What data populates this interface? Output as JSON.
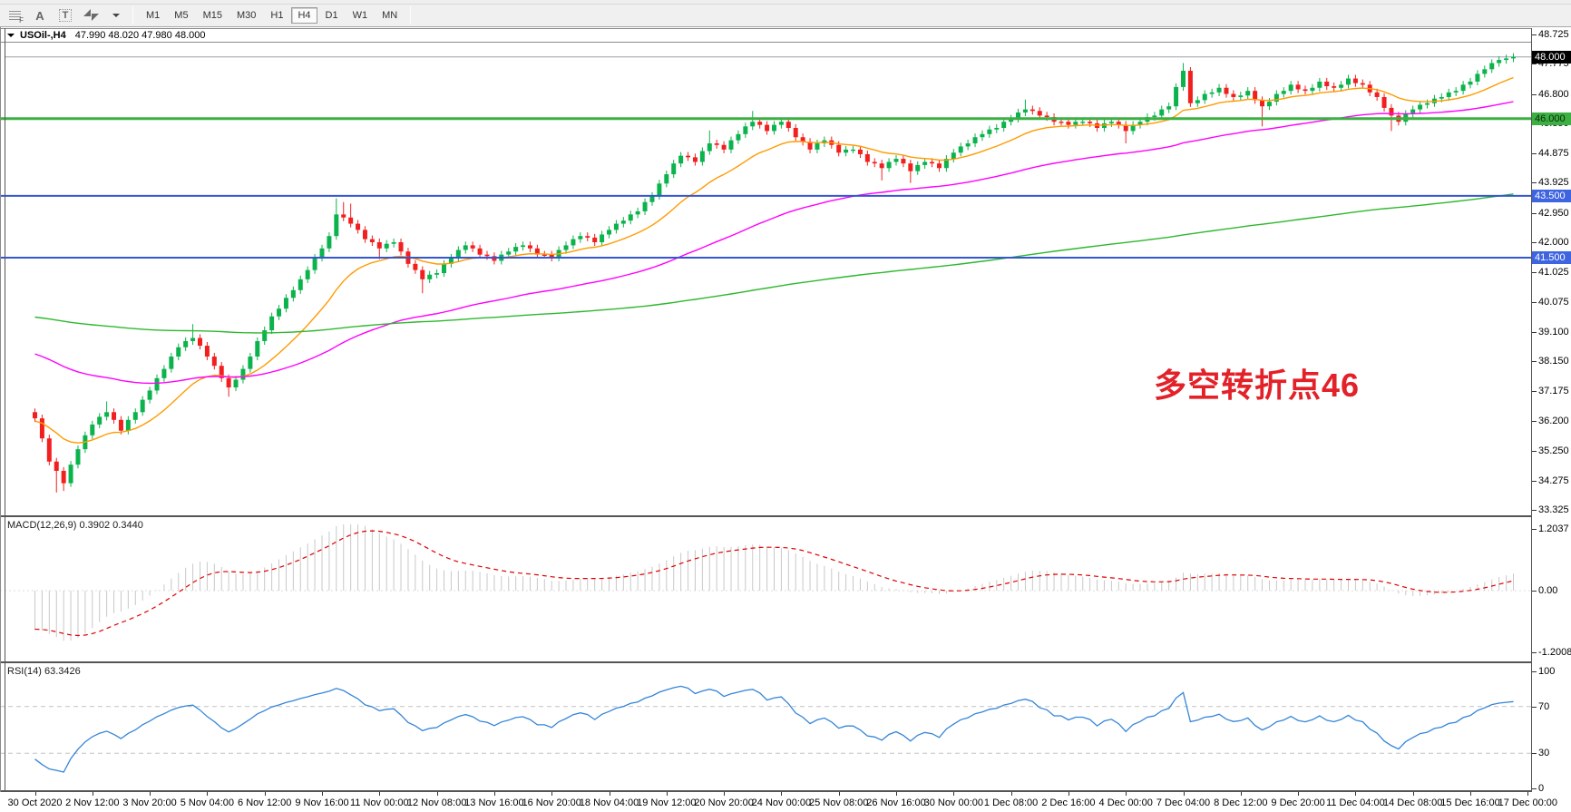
{
  "toolbar": {
    "icons": {
      "fibonacci": "F",
      "text": "A",
      "label": "T"
    },
    "timeframes": [
      "M1",
      "M5",
      "M15",
      "M30",
      "H1",
      "H4",
      "D1",
      "W1",
      "MN"
    ],
    "active_timeframe": "H4"
  },
  "chart": {
    "title": {
      "symbol": "USOil-,H4",
      "ohlc": "47.990 48.020 47.980 48.000"
    },
    "annotation": {
      "text": "多空转折点46",
      "color": "#e32129"
    }
  },
  "chart_data": {
    "type": "candlestick",
    "symbol": "USOil",
    "timeframe": "H4",
    "title": "USOil-,H4 47.990 48.020 47.980 48.000",
    "ohlc_display": {
      "open": "47.990",
      "high": "48.020",
      "low": "47.980",
      "close": "48.000"
    },
    "colors": {
      "bull": "#0bb34c",
      "bear": "#f21f1f",
      "price_line": "#9aa0aa",
      "price_box_bg": "#000000",
      "price_box_fg": "#ffffff",
      "macd_histogram": "#c8c8c8",
      "macd_signal": "#e00000",
      "rsi_line": "#3585d8",
      "rsi_levels": "#c4c4c4"
    },
    "price_axis": {
      "ticks": [
        48.725,
        47.775,
        46.8,
        45.85,
        44.875,
        43.925,
        42.95,
        42.0,
        41.025,
        40.075,
        39.1,
        38.15,
        37.175,
        36.2,
        35.25,
        34.275,
        33.325
      ],
      "current_price": {
        "value": 48.0,
        "label": "48.000"
      },
      "levels": [
        {
          "value": 46.0,
          "label": "46.000",
          "color": "#3cb043",
          "box_bg": "#3cb043",
          "box_fg": "#0a2a0a",
          "width": 3
        },
        {
          "value": 43.5,
          "label": "43.500",
          "color": "#3456d1",
          "box_bg": "#3e64e0",
          "box_fg": "#ffffff",
          "width": 2
        },
        {
          "value": 41.5,
          "label": "41.500",
          "color": "#3456d1",
          "box_bg": "#3e64e0",
          "box_fg": "#ffffff",
          "width": 2
        }
      ]
    },
    "time_axis": {
      "bars_per_label": 8,
      "labels": [
        "30 Oct 2020",
        "2 Nov 12:00",
        "3 Nov 20:00",
        "5 Nov 04:00",
        "6 Nov 12:00",
        "9 Nov 16:00",
        "11 Nov 00:00",
        "12 Nov 08:00",
        "13 Nov 16:00",
        "16 Nov 20:00",
        "18 Nov 04:00",
        "19 Nov 12:00",
        "20 Nov 20:00",
        "24 Nov 00:00",
        "25 Nov 08:00",
        "26 Nov 16:00",
        "30 Nov 00:00",
        "1 Dec 08:00",
        "2 Dec 16:00",
        "4 Dec 00:00",
        "7 Dec 04:00",
        "8 Dec 12:00",
        "9 Dec 20:00",
        "11 Dec 04:00",
        "14 Dec 08:00",
        "15 Dec 16:00",
        "17 Dec 00:00"
      ]
    },
    "candles": {
      "count": 207,
      "first_open": 36.5,
      "default_wick": 0.12,
      "jitter": 0.05,
      "keyframes": [
        [
          0,
          36.3
        ],
        [
          2,
          34.9
        ],
        [
          4,
          34.2
        ],
        [
          6,
          35.3
        ],
        [
          8,
          36.1
        ],
        [
          10,
          36.5
        ],
        [
          12,
          35.9
        ],
        [
          14,
          36.5
        ],
        [
          16,
          37.2
        ],
        [
          18,
          37.9
        ],
        [
          20,
          38.6
        ],
        [
          22,
          38.9
        ],
        [
          24,
          38.3
        ],
        [
          26,
          37.6
        ],
        [
          27,
          37.3
        ],
        [
          29,
          37.9
        ],
        [
          31,
          38.8
        ],
        [
          33,
          39.6
        ],
        [
          35,
          40.2
        ],
        [
          37,
          40.8
        ],
        [
          39,
          41.5
        ],
        [
          41,
          42.2
        ],
        [
          42,
          42.9
        ],
        [
          44,
          42.6
        ],
        [
          46,
          42.1
        ],
        [
          48,
          41.8
        ],
        [
          50,
          42.0
        ],
        [
          52,
          41.3
        ],
        [
          54,
          40.8
        ],
        [
          56,
          41.0
        ],
        [
          58,
          41.5
        ],
        [
          60,
          41.9
        ],
        [
          62,
          41.6
        ],
        [
          64,
          41.4
        ],
        [
          66,
          41.7
        ],
        [
          68,
          41.9
        ],
        [
          70,
          41.6
        ],
        [
          72,
          41.5
        ],
        [
          74,
          41.9
        ],
        [
          76,
          42.2
        ],
        [
          78,
          42.0
        ],
        [
          80,
          42.4
        ],
        [
          82,
          42.7
        ],
        [
          84,
          43.0
        ],
        [
          86,
          43.5
        ],
        [
          88,
          44.2
        ],
        [
          90,
          44.8
        ],
        [
          92,
          44.6
        ],
        [
          94,
          45.2
        ],
        [
          96,
          45.0
        ],
        [
          98,
          45.5
        ],
        [
          100,
          45.9
        ],
        [
          102,
          45.6
        ],
        [
          104,
          45.9
        ],
        [
          106,
          45.4
        ],
        [
          108,
          45.0
        ],
        [
          110,
          45.3
        ],
        [
          112,
          44.9
        ],
        [
          114,
          45.0
        ],
        [
          116,
          44.6
        ],
        [
          118,
          44.4
        ],
        [
          120,
          44.7
        ],
        [
          122,
          44.3
        ],
        [
          124,
          44.6
        ],
        [
          126,
          44.4
        ],
        [
          128,
          44.9
        ],
        [
          130,
          45.2
        ],
        [
          132,
          45.5
        ],
        [
          134,
          45.7
        ],
        [
          136,
          46.0
        ],
        [
          138,
          46.3
        ],
        [
          140,
          46.1
        ],
        [
          142,
          45.9
        ],
        [
          144,
          45.8
        ],
        [
          146,
          45.9
        ],
        [
          148,
          45.7
        ],
        [
          150,
          45.9
        ],
        [
          152,
          45.6
        ],
        [
          154,
          45.9
        ],
        [
          156,
          46.1
        ],
        [
          158,
          46.4
        ],
        [
          160,
          47.55
        ],
        [
          161,
          46.5
        ],
        [
          163,
          46.8
        ],
        [
          165,
          47.0
        ],
        [
          167,
          46.7
        ],
        [
          169,
          46.9
        ],
        [
          171,
          46.4
        ],
        [
          173,
          46.8
        ],
        [
          175,
          47.1
        ],
        [
          177,
          46.9
        ],
        [
          179,
          47.2
        ],
        [
          181,
          47.0
        ],
        [
          183,
          47.3
        ],
        [
          185,
          47.1
        ],
        [
          187,
          46.7
        ],
        [
          189,
          46.1
        ],
        [
          190,
          45.9
        ],
        [
          192,
          46.3
        ],
        [
          194,
          46.5
        ],
        [
          196,
          46.7
        ],
        [
          198,
          46.9
        ],
        [
          200,
          47.2
        ],
        [
          202,
          47.6
        ],
        [
          203,
          47.8
        ],
        [
          204,
          47.9
        ],
        [
          205,
          47.95
        ],
        [
          206,
          48.0
        ]
      ],
      "spikes": {
        "3": {
          "low": 33.9
        },
        "4": {
          "low": 33.95
        },
        "10": {
          "high": 36.85
        },
        "22": {
          "high": 39.35
        },
        "27": {
          "low": 37.0
        },
        "42": {
          "high": 43.42
        },
        "43": {
          "high": 43.3
        },
        "44": {
          "high": 43.25
        },
        "48": {
          "low": 41.45
        },
        "54": {
          "low": 40.35
        },
        "94": {
          "high": 45.62
        },
        "100": {
          "high": 46.25
        },
        "118": {
          "low": 44.0
        },
        "122": {
          "low": 43.92
        },
        "138": {
          "high": 46.62
        },
        "152": {
          "low": 45.2
        },
        "160": {
          "high": 47.8
        },
        "171": {
          "low": 45.75
        },
        "189": {
          "low": 45.6
        },
        "206": {
          "high": 48.02
        }
      }
    },
    "moving_averages": [
      {
        "name": "ma-fast",
        "color": "#ff9b00",
        "k": 0.12,
        "seed": 36.2
      },
      {
        "name": "ma-mid",
        "color": "#ff00ff",
        "k": 0.03,
        "seed": 38.45
      },
      {
        "name": "ma-slow",
        "color": "#2eb82e",
        "k": 0.0072,
        "seed": 39.6
      }
    ],
    "macd": {
      "label": "MACD(12,26,9) 0.3902 0.3440",
      "params": [
        12,
        26,
        9
      ],
      "main_value": 0.3902,
      "signal_value": 0.344,
      "axis_labels": [
        "1.2037",
        "0.00",
        "-1.2008"
      ],
      "axis_values": [
        1.2037,
        0.0,
        -1.2008
      ],
      "seeds": {
        "fast": 36.6,
        "slow": 37.4,
        "signal": -0.75
      }
    },
    "rsi": {
      "label": "RSI(14) 63.3426",
      "period": 14,
      "value": 63.3426,
      "levels": [
        70,
        30
      ],
      "axis_labels": [
        "100",
        "70",
        "30",
        "0"
      ],
      "axis_values": [
        100,
        70,
        30,
        0
      ],
      "seeds": {
        "gain": 0.06,
        "loss": 0.18
      }
    }
  }
}
